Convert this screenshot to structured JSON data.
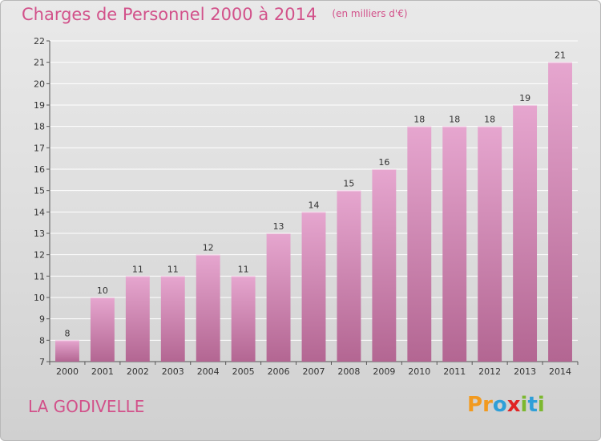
{
  "title": "Charges de Personnel 2000 à 2014",
  "subtitle": "(en milliers d'€)",
  "commune": "LA GODIVELLE",
  "logo": {
    "letters": [
      "P",
      "r",
      "o",
      "x",
      "i",
      "t",
      "i"
    ],
    "colors": [
      "#f29a1f",
      "#f29a1f",
      "#2f9fd8",
      "#e02424",
      "#7cb82f",
      "#2f9fd8",
      "#7cb82f"
    ]
  },
  "colors": {
    "title": "#d2518a",
    "bar_top": "#e6a6cf",
    "bar_bottom": "#b36692"
  },
  "chart_data": {
    "type": "bar",
    "title": "Charges de Personnel 2000 à 2014",
    "subtitle": "(en milliers d'€)",
    "categories": [
      "2000",
      "2001",
      "2002",
      "2003",
      "2004",
      "2005",
      "2006",
      "2007",
      "2008",
      "2009",
      "2010",
      "2011",
      "2012",
      "2013",
      "2014"
    ],
    "values": [
      8,
      10,
      11,
      11,
      12,
      11,
      13,
      14,
      15,
      16,
      18,
      18,
      18,
      19,
      21
    ],
    "ylim": [
      7,
      22
    ],
    "yticks": [
      7,
      8,
      9,
      10,
      11,
      12,
      13,
      14,
      15,
      16,
      17,
      18,
      19,
      20,
      21,
      22
    ],
    "grid": true
  }
}
